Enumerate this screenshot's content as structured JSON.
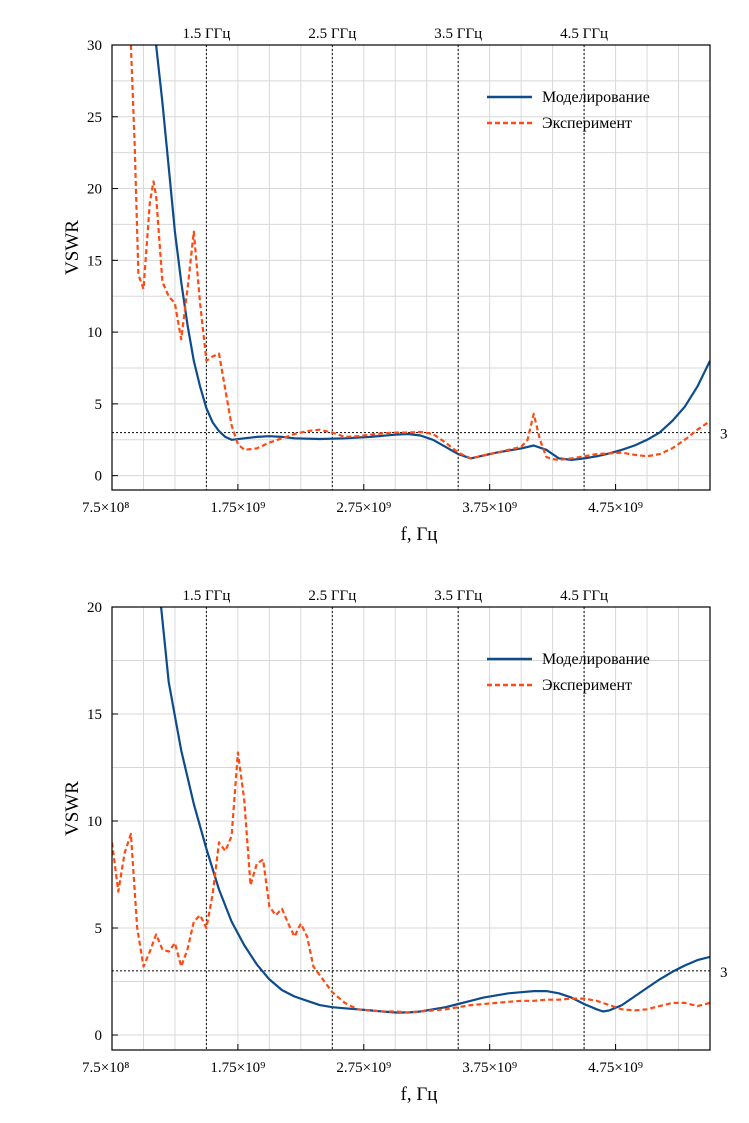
{
  "colors": {
    "sim": "#0d4b8c",
    "exp": "#ff4a12",
    "grid": "#d8d8d8",
    "ref": "#222222"
  },
  "chart_data": [
    {
      "type": "line",
      "xlabel": "f, Гц",
      "ylabel": "VSWR",
      "xlim": [
        750000000,
        5500000000
      ],
      "ylim": [
        -1,
        30
      ],
      "x_ticks": [
        750000000,
        1750000000,
        2750000000,
        3750000000,
        4750000000
      ],
      "x_tick_labels": [
        "7.5×10⁸",
        "1.75×10⁹",
        "2.75×10⁹",
        "3.75×10⁹",
        "4.75×10⁹"
      ],
      "y_ticks": [
        0,
        5,
        10,
        15,
        20,
        25,
        30
      ],
      "y_tick_labels": [
        "0",
        "5",
        "10",
        "15",
        "20",
        "25",
        "30"
      ],
      "top_markers": [
        {
          "x": 1500000000,
          "label": "1.5 ГГц"
        },
        {
          "x": 2500000000,
          "label": "2.5 ГГц"
        },
        {
          "x": 3500000000,
          "label": "3.5 ГГц"
        },
        {
          "x": 4500000000,
          "label": "4.5 ГГц"
        }
      ],
      "hline": {
        "y": 3,
        "label": "3"
      },
      "grid": true,
      "legend": "top-right",
      "series": [
        {
          "name": "Моделирование",
          "style": "solid",
          "x": [
            1100000000,
            1150000000,
            1200000000,
            1250000000,
            1300000000,
            1350000000,
            1400000000,
            1450000000,
            1500000000,
            1550000000,
            1600000000,
            1650000000,
            1700000000,
            1800000000,
            1900000000,
            2000000000,
            2100000000,
            2200000000,
            2400000000,
            2600000000,
            2800000000,
            3000000000,
            3100000000,
            3200000000,
            3300000000,
            3400000000,
            3500000000,
            3600000000,
            3700000000,
            3800000000,
            3900000000,
            4000000000,
            4100000000,
            4200000000,
            4300000000,
            4400000000,
            4500000000,
            4600000000,
            4700000000,
            4800000000,
            4900000000,
            5000000000,
            5100000000,
            5200000000,
            5300000000,
            5400000000,
            5500000000
          ],
          "y": [
            30,
            26,
            21.5,
            17,
            13.5,
            10.5,
            8,
            6.2,
            4.7,
            3.7,
            3.1,
            2.7,
            2.5,
            2.6,
            2.7,
            2.75,
            2.7,
            2.6,
            2.55,
            2.6,
            2.7,
            2.85,
            2.9,
            2.8,
            2.5,
            2.0,
            1.5,
            1.2,
            1.4,
            1.6,
            1.75,
            1.9,
            2.1,
            1.8,
            1.2,
            1.1,
            1.2,
            1.35,
            1.55,
            1.8,
            2.1,
            2.5,
            3.0,
            3.8,
            4.8,
            6.2,
            8.0
          ]
        },
        {
          "name": "Эксперимент",
          "style": "dashed",
          "x": [
            900000000,
            930000000,
            960000000,
            1000000000,
            1050000000,
            1080000000,
            1100000000,
            1150000000,
            1200000000,
            1250000000,
            1300000000,
            1350000000,
            1400000000,
            1450000000,
            1500000000,
            1550000000,
            1600000000,
            1650000000,
            1700000000,
            1750000000,
            1800000000,
            1900000000,
            2000000000,
            2100000000,
            2200000000,
            2300000000,
            2400000000,
            2500000000,
            2600000000,
            2700000000,
            2800000000,
            2900000000,
            3000000000,
            3100000000,
            3200000000,
            3300000000,
            3400000000,
            3500000000,
            3600000000,
            3700000000,
            3800000000,
            3900000000,
            4000000000,
            4050000000,
            4100000000,
            4150000000,
            4200000000,
            4250000000,
            4300000000,
            4400000000,
            4500000000,
            4600000000,
            4700000000,
            4800000000,
            4900000000,
            5000000000,
            5100000000,
            5200000000,
            5300000000,
            5400000000,
            5500000000
          ],
          "y": [
            30,
            23,
            14,
            13,
            19,
            20.5,
            19.5,
            13.5,
            12.5,
            12,
            9.5,
            13,
            17,
            12,
            8,
            8.3,
            8.5,
            6,
            3.5,
            2.2,
            1.8,
            1.9,
            2.3,
            2.6,
            2.9,
            3.1,
            3.2,
            3.0,
            2.7,
            2.75,
            2.85,
            2.95,
            3.0,
            3.0,
            3.05,
            2.9,
            2.3,
            1.6,
            1.2,
            1.4,
            1.6,
            1.8,
            2.0,
            2.5,
            4.3,
            2.5,
            1.3,
            1.15,
            1.1,
            1.2,
            1.35,
            1.5,
            1.55,
            1.6,
            1.45,
            1.35,
            1.5,
            1.9,
            2.5,
            3.2,
            3.8
          ]
        }
      ]
    },
    {
      "type": "line",
      "xlabel": "f, Гц",
      "ylabel": "VSWR",
      "xlim": [
        750000000,
        5500000000
      ],
      "ylim": [
        -0.7,
        20
      ],
      "x_ticks": [
        750000000,
        1750000000,
        2750000000,
        3750000000,
        4750000000
      ],
      "x_tick_labels": [
        "7.5×10⁸",
        "1.75×10⁹",
        "2.75×10⁹",
        "3.75×10⁹",
        "4.75×10⁹"
      ],
      "y_ticks": [
        0,
        5,
        10,
        15,
        20
      ],
      "y_tick_labels": [
        "0",
        "5",
        "10",
        "15",
        "20"
      ],
      "top_markers": [
        {
          "x": 1500000000,
          "label": "1.5 ГГц"
        },
        {
          "x": 2500000000,
          "label": "2.5 ГГц"
        },
        {
          "x": 3500000000,
          "label": "3.5 ГГц"
        },
        {
          "x": 4500000000,
          "label": "4.5 ГГц"
        }
      ],
      "hline": {
        "y": 3,
        "label": "3"
      },
      "grid": true,
      "legend": "top-right",
      "series": [
        {
          "name": "Моделирование",
          "style": "solid",
          "x": [
            1140000000,
            1200000000,
            1300000000,
            1400000000,
            1500000000,
            1600000000,
            1700000000,
            1800000000,
            1900000000,
            2000000000,
            2100000000,
            2200000000,
            2300000000,
            2400000000,
            2500000000,
            2600000000,
            2700000000,
            2800000000,
            2900000000,
            3000000000,
            3100000000,
            3200000000,
            3300000000,
            3400000000,
            3500000000,
            3600000000,
            3700000000,
            3800000000,
            3900000000,
            4000000000,
            4100000000,
            4200000000,
            4300000000,
            4400000000,
            4500000000,
            4600000000,
            4650000000,
            4700000000,
            4800000000,
            4900000000,
            5000000000,
            5100000000,
            5200000000,
            5300000000,
            5400000000,
            5500000000
          ],
          "y": [
            20,
            16.5,
            13.3,
            10.8,
            8.7,
            6.8,
            5.3,
            4.2,
            3.3,
            2.6,
            2.1,
            1.8,
            1.6,
            1.4,
            1.3,
            1.25,
            1.2,
            1.15,
            1.1,
            1.05,
            1.05,
            1.1,
            1.2,
            1.3,
            1.45,
            1.6,
            1.75,
            1.85,
            1.95,
            2.0,
            2.05,
            2.05,
            1.95,
            1.75,
            1.45,
            1.2,
            1.1,
            1.15,
            1.4,
            1.8,
            2.2,
            2.6,
            2.95,
            3.25,
            3.5,
            3.65
          ]
        },
        {
          "name": "Эксперимент",
          "style": "dashed",
          "x": [
            750000000,
            800000000,
            850000000,
            900000000,
            950000000,
            1000000000,
            1050000000,
            1100000000,
            1150000000,
            1200000000,
            1250000000,
            1300000000,
            1350000000,
            1400000000,
            1450000000,
            1500000000,
            1550000000,
            1600000000,
            1650000000,
            1700000000,
            1750000000,
            1800000000,
            1850000000,
            1900000000,
            1950000000,
            2000000000,
            2050000000,
            2100000000,
            2150000000,
            2200000000,
            2250000000,
            2300000000,
            2350000000,
            2400000000,
            2500000000,
            2600000000,
            2700000000,
            2800000000,
            2900000000,
            3000000000,
            3100000000,
            3200000000,
            3300000000,
            3400000000,
            3500000000,
            3600000000,
            3700000000,
            3800000000,
            3900000000,
            4000000000,
            4100000000,
            4200000000,
            4300000000,
            4400000000,
            4500000000,
            4600000000,
            4700000000,
            4800000000,
            4900000000,
            5000000000,
            5100000000,
            5200000000,
            5300000000,
            5400000000,
            5500000000
          ],
          "y": [
            9,
            6.7,
            8.5,
            9.4,
            5,
            3.2,
            3.9,
            4.7,
            4.0,
            3.9,
            4.3,
            3.2,
            4.0,
            5.3,
            5.6,
            5.0,
            6.6,
            9.0,
            8.6,
            9.3,
            13.2,
            11.0,
            7.0,
            8.0,
            8.2,
            6.0,
            5.6,
            5.9,
            5.2,
            4.6,
            5.2,
            4.6,
            3.2,
            2.8,
            2.0,
            1.5,
            1.2,
            1.15,
            1.1,
            1.1,
            1.05,
            1.1,
            1.15,
            1.2,
            1.3,
            1.4,
            1.45,
            1.5,
            1.55,
            1.6,
            1.6,
            1.65,
            1.65,
            1.7,
            1.7,
            1.6,
            1.4,
            1.2,
            1.15,
            1.2,
            1.35,
            1.5,
            1.5,
            1.35,
            1.5
          ]
        }
      ]
    }
  ]
}
